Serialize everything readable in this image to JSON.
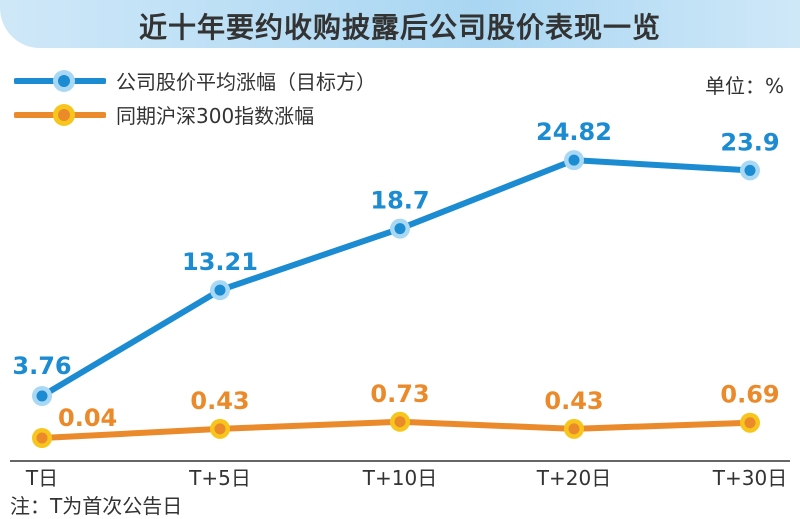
{
  "chart_data": {
    "type": "line",
    "title": "近十年要约收购披露后公司股价表现一览",
    "unit_label": "单位：%",
    "note": "注：T为首次公告日",
    "categories": [
      "T日",
      "T+5日",
      "T+10日",
      "T+20日",
      "T+30日"
    ],
    "series": [
      {
        "name": "公司股价平均涨幅（目标方）",
        "values": [
          3.76,
          13.21,
          18.7,
          24.82,
          23.9
        ],
        "labels": [
          "3.76",
          "13.21",
          "18.7",
          "24.82",
          "23.9"
        ],
        "color": "#1b8bd2",
        "marker_color": "#a8d8f4"
      },
      {
        "name": "同期沪深300指数涨幅",
        "values": [
          0.04,
          0.43,
          0.73,
          0.43,
          0.69
        ],
        "labels": [
          "0.04",
          "0.43",
          "0.73",
          "0.43",
          "0.69"
        ],
        "color": "#ea8a2a",
        "marker_color": "#f7c51b"
      }
    ],
    "grid": false,
    "legend": "top-left"
  }
}
